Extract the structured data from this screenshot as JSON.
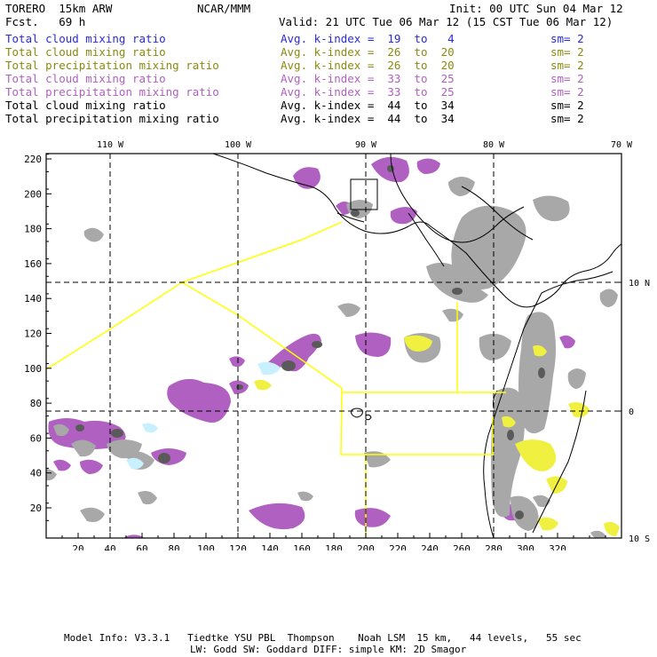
{
  "header": {
    "model_id": "TORERO  15km ARW",
    "org": "NCAR/MMM",
    "init": "Init: 00 UTC Sun 04 Mar 12",
    "fcst": "Fcst.   69 h",
    "valid": "Valid: 21 UTC Tue 06 Mar 12 (15 CST Tue 06 Mar 12)"
  },
  "legend": [
    {
      "field": "Total cloud mixing ratio",
      "kidx": "Avg. k-index =  19  to   4",
      "sm": "sm= 2",
      "color": "#2a2ad8"
    },
    {
      "field": "Total cloud mixing ratio",
      "kidx": "Avg. k-index =  26  to  20",
      "sm": "sm= 2",
      "color": "#8a8a10"
    },
    {
      "field": "Total precipitation mixing ratio",
      "kidx": "Avg. k-index =  26  to  20",
      "sm": "sm= 2",
      "color": "#8a8a10"
    },
    {
      "field": "Total cloud mixing ratio",
      "kidx": "Avg. k-index =  33  to  25",
      "sm": "sm= 2",
      "color": "#b060c0"
    },
    {
      "field": "Total precipitation mixing ratio",
      "kidx": "Avg. k-index =  33  to  25",
      "sm": "sm= 2",
      "color": "#b060c0"
    },
    {
      "field": "Total cloud mixing ratio",
      "kidx": "Avg. k-index =  44  to  34",
      "sm": "sm= 2",
      "color": "#000000"
    },
    {
      "field": "Total precipitation mixing ratio",
      "kidx": "Avg. k-index =  44  to  34",
      "sm": "sm= 2",
      "color": "#000000"
    }
  ],
  "map": {
    "x_ticks": [
      "20",
      "40",
      "60",
      "80",
      "100",
      "120",
      "140",
      "160",
      "180",
      "200",
      "220",
      "240",
      "260",
      "280",
      "300",
      "320"
    ],
    "y_ticks": [
      "20",
      "40",
      "60",
      "80",
      "100",
      "120",
      "140",
      "160",
      "180",
      "200",
      "220"
    ],
    "lon_labels": [
      "110 W",
      "100 W",
      "90 W",
      "80 W",
      "70 W"
    ],
    "lat_labels": [
      "10 N",
      "0",
      "10 S"
    ],
    "colors": {
      "purple": "#b060c0",
      "gray": "#a8a8a8",
      "darkgray": "#5a5a5a",
      "yellow": "#f0f040",
      "cyan": "#c8f0ff",
      "boundary": "#ffff00"
    }
  },
  "footer": {
    "line1": "Model Info: V3.3.1   Tiedtke YSU PBL  Thompson    Noah LSM  15 km,   44 levels,   55 sec",
    "line2": "LW: Godd SW: Goddard DIFF: simple KM: 2D Smagor"
  }
}
